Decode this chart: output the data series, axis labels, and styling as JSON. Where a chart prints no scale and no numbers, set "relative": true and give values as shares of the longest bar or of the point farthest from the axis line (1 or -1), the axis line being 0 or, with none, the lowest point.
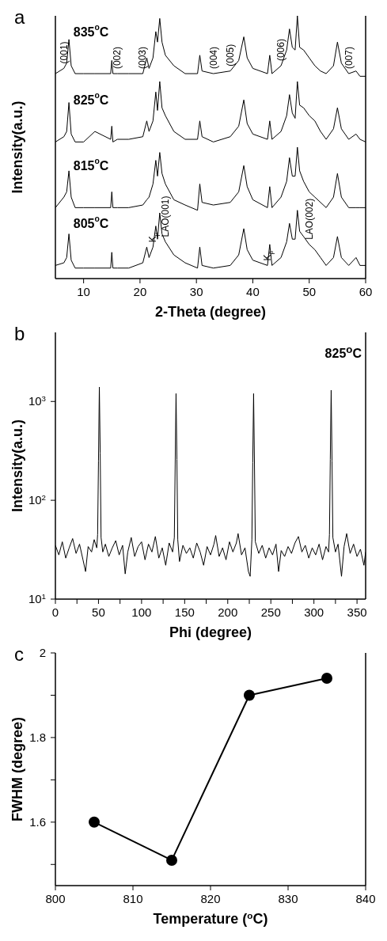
{
  "chart_data": [
    {
      "type": "line",
      "title": "a",
      "xlabel": "2-Theta (degree)",
      "ylabel": "Intensity(a.u.)",
      "relative": true,
      "xlim": [
        5,
        60
      ],
      "xticks": [
        10,
        20,
        30,
        40,
        50,
        60
      ],
      "x": [
        5,
        6.5,
        7.0,
        7.4,
        7.8,
        8.5,
        10,
        12,
        14.8,
        15,
        15.2,
        16,
        18,
        20.5,
        21.2,
        21.6,
        22.3,
        22.8,
        23.1,
        23.5,
        23.9,
        24.5,
        26,
        28,
        30.2,
        30.6,
        31,
        33,
        36,
        37.5,
        38.4,
        39,
        40,
        42.6,
        43,
        43.4,
        45,
        46,
        46.5,
        47,
        47.5,
        47.9,
        48.3,
        49,
        50,
        51,
        52,
        53,
        54.3,
        55,
        55.7,
        57,
        58.3,
        59,
        60
      ],
      "series": [
        {
          "name": "835$^{o}$C",
          "color": "#000000",
          "values": [
            0.78,
            0.8,
            0.82,
            0.91,
            0.81,
            0.78,
            0.78,
            0.78,
            0.78,
            0.83,
            0.78,
            0.78,
            0.78,
            0.78,
            0.84,
            0.8,
            0.84,
            0.94,
            0.9,
            0.99,
            0.9,
            0.85,
            0.81,
            0.78,
            0.78,
            0.85,
            0.79,
            0.78,
            0.79,
            0.83,
            0.92,
            0.84,
            0.8,
            0.78,
            0.85,
            0.78,
            0.81,
            0.87,
            0.95,
            0.88,
            0.87,
            1.0,
            0.88,
            0.87,
            0.84,
            0.81,
            0.79,
            0.78,
            0.81,
            0.9,
            0.82,
            0.78,
            0.79,
            0.77,
            0.77
          ]
        },
        {
          "name": "825$^{o}$C",
          "color": "#000000",
          "values": [
            0.52,
            0.54,
            0.56,
            0.67,
            0.55,
            0.52,
            0.52,
            0.56,
            0.53,
            0.58,
            0.52,
            0.53,
            0.53,
            0.54,
            0.6,
            0.56,
            0.6,
            0.71,
            0.64,
            0.75,
            0.65,
            0.62,
            0.56,
            0.53,
            0.53,
            0.6,
            0.54,
            0.52,
            0.54,
            0.58,
            0.68,
            0.59,
            0.55,
            0.53,
            0.6,
            0.53,
            0.56,
            0.62,
            0.7,
            0.63,
            0.61,
            0.75,
            0.66,
            0.65,
            0.62,
            0.6,
            0.56,
            0.53,
            0.57,
            0.65,
            0.57,
            0.53,
            0.55,
            0.53,
            0.52
          ]
        },
        {
          "name": "815$^{o}$C",
          "color": "#000000",
          "values": [
            0.27,
            0.31,
            0.33,
            0.41,
            0.31,
            0.27,
            0.27,
            0.27,
            0.27,
            0.33,
            0.27,
            0.27,
            0.27,
            0.28,
            0.3,
            0.31,
            0.36,
            0.45,
            0.39,
            0.48,
            0.4,
            0.36,
            0.3,
            0.28,
            0.26,
            0.36,
            0.29,
            0.28,
            0.29,
            0.33,
            0.43,
            0.35,
            0.3,
            0.27,
            0.35,
            0.27,
            0.31,
            0.37,
            0.46,
            0.39,
            0.39,
            0.5,
            0.41,
            0.37,
            0.33,
            0.31,
            0.29,
            0.27,
            0.31,
            0.4,
            0.31,
            0.27,
            0.27,
            0.27,
            0.27
          ]
        },
        {
          "name": "805$^{o}$C",
          "color": "#000000",
          "values": [
            0.05,
            0.06,
            0.08,
            0.17,
            0.07,
            0.04,
            0.04,
            0.04,
            0.04,
            0.1,
            0.04,
            0.04,
            0.04,
            0.06,
            0.12,
            0.08,
            0.12,
            0.2,
            0.15,
            0.25,
            0.17,
            0.14,
            0.09,
            0.06,
            0.04,
            0.12,
            0.05,
            0.04,
            0.05,
            0.09,
            0.19,
            0.11,
            0.07,
            0.05,
            0.13,
            0.05,
            0.08,
            0.14,
            0.21,
            0.15,
            0.15,
            0.26,
            0.18,
            0.16,
            0.13,
            0.11,
            0.08,
            0.05,
            0.08,
            0.16,
            0.08,
            0.05,
            0.08,
            0.05,
            0.05
          ]
        }
      ],
      "annotations": [
        {
          "text": "(001)",
          "x": 6.5,
          "y": 0.8
        },
        {
          "text": "(002)",
          "x": 16,
          "y": 0.78
        },
        {
          "text": "(003)",
          "x": 20.5,
          "y": 0.78
        },
        {
          "text": "(004)",
          "x": 33,
          "y": 0.78
        },
        {
          "text": "(005)",
          "x": 36,
          "y": 0.79
        },
        {
          "text": "(006)",
          "x": 45,
          "y": 0.81
        },
        {
          "text": "(007)",
          "x": 57,
          "y": 0.78
        },
        {
          "text": "K$_{β}$",
          "x": 22.3,
          "y": 0.12
        },
        {
          "text": "LAO(001)",
          "x": 24.5,
          "y": 0.14
        },
        {
          "text": "K$_{β}$",
          "x": 42.6,
          "y": 0.05
        },
        {
          "text": "LAO(002)",
          "x": 50,
          "y": 0.13
        }
      ]
    },
    {
      "type": "line",
      "title": "b",
      "xlabel": "Phi (degree)",
      "ylabel": "Intensity(a.u.)",
      "log": "y",
      "xlim": [
        0,
        360
      ],
      "xticks": [
        0,
        {
          "value": 25,
          "label": null
        },
        50,
        {
          "value": 75,
          "label": null
        },
        100,
        {
          "value": 125,
          "label": null
        },
        150,
        {
          "value": 175,
          "label": null
        },
        200,
        {
          "value": 225,
          "label": null
        },
        250,
        {
          "value": 275,
          "label": null
        },
        300,
        {
          "value": 325,
          "label": null
        },
        350
      ],
      "ylim": [
        10,
        5000
      ],
      "yticks": [
        {
          "value": 10,
          "label": "10$^{1}$"
        },
        {
          "value": 100,
          "label": "10$^{2}$"
        },
        {
          "value": 1000,
          "label": "10$^{3}$"
        }
      ],
      "x": [
        0,
        4,
        8,
        12,
        16,
        20,
        24,
        28,
        32,
        35,
        38,
        42,
        45,
        48,
        49,
        50,
        51,
        52,
        53,
        55,
        58,
        62,
        66,
        70,
        74,
        78,
        81,
        84,
        88,
        92,
        96,
        100,
        104,
        108,
        112,
        116,
        120,
        124,
        128,
        132,
        136,
        138,
        139,
        140,
        141,
        142,
        144,
        148,
        152,
        156,
        160,
        164,
        168,
        172,
        176,
        180,
        184,
        186,
        190,
        194,
        198,
        202,
        206,
        210,
        212,
        216,
        220,
        224,
        226,
        228,
        229,
        230,
        231,
        232,
        236,
        240,
        244,
        248,
        252,
        256,
        259,
        262,
        266,
        270,
        274,
        278,
        282,
        286,
        290,
        294,
        298,
        302,
        306,
        310,
        314,
        317,
        318,
        319,
        320,
        321,
        322,
        325,
        328,
        332,
        335,
        338,
        342,
        346,
        350,
        354,
        358,
        360
      ],
      "series": [
        {
          "color": "#000000",
          "values": [
            35,
            28,
            38,
            26,
            33,
            41,
            29,
            36,
            25,
            19,
            34,
            30,
            40,
            33,
            45,
            250,
            1400,
            300,
            42,
            30,
            36,
            27,
            33,
            39,
            28,
            35,
            18,
            30,
            42,
            27,
            34,
            38,
            25,
            36,
            30,
            43,
            26,
            33,
            22,
            37,
            30,
            42,
            230,
            1200,
            260,
            40,
            24,
            35,
            29,
            33,
            26,
            37,
            30,
            22,
            34,
            28,
            36,
            44,
            27,
            33,
            25,
            38,
            30,
            37,
            46,
            28,
            33,
            19,
            17,
            40,
            240,
            1200,
            230,
            38,
            29,
            35,
            26,
            33,
            28,
            36,
            19,
            31,
            27,
            34,
            29,
            37,
            43,
            30,
            35,
            26,
            33,
            28,
            36,
            25,
            34,
            30,
            45,
            260,
            1300,
            250,
            42,
            30,
            36,
            17,
            34,
            46,
            29,
            36,
            27,
            32,
            22,
            30
          ]
        }
      ],
      "annotations": [
        "825$^{o}$C"
      ]
    },
    {
      "type": "line",
      "title": "c",
      "xlabel": "Temperature ($^{o}$C)",
      "ylabel": "FWHM (degree)",
      "marker": "circle",
      "xlim": [
        800,
        840
      ],
      "xticks": [
        800,
        810,
        820,
        830,
        840
      ],
      "ylim": [
        1.45,
        2.0
      ],
      "yticks": [
        {
          "value": 1.5,
          "label": null
        },
        1.6,
        {
          "value": 1.7,
          "label": null
        },
        1.8,
        {
          "value": 1.9,
          "label": null
        },
        2.0
      ],
      "x": [
        805,
        815,
        825,
        835
      ],
      "series": [
        {
          "color": "#000000",
          "values": [
            1.6,
            1.51,
            1.9,
            1.94
          ]
        }
      ]
    }
  ]
}
